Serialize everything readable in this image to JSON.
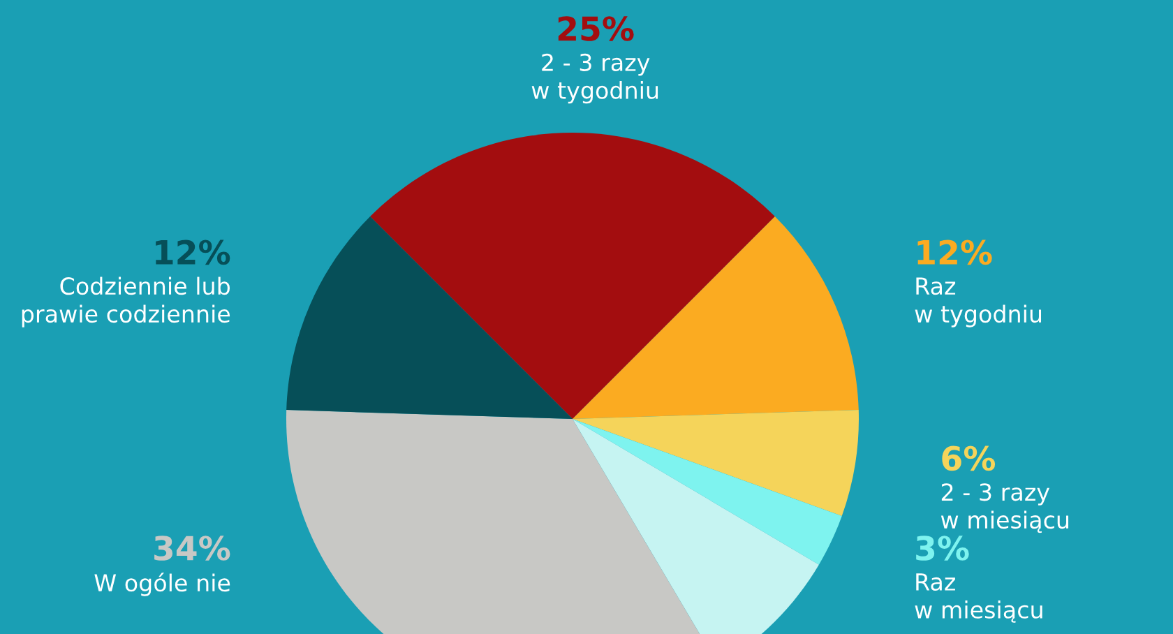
{
  "chart_data": {
    "type": "pie",
    "categories": [
      "2 - 3 razy\nw tygodniu",
      "Raz\nw tygodniu",
      "2 - 3 razy\nw miesiącu",
      "Raz\nw miesiącu",
      null,
      "W ogóle nie",
      "Codziennie lub\nprawie codziennie"
    ],
    "values": [
      25,
      12,
      6,
      3,
      8,
      34,
      12
    ],
    "value_labels": [
      "25%",
      "12%",
      "6%",
      "3%",
      null,
      "34%",
      "12%"
    ],
    "colors": [
      "#a30d0f",
      "#fbab21",
      "#f5d45a",
      "#7ef3ef",
      "#c6f4f2",
      "#c8c8c5",
      "#064f58"
    ]
  }
}
